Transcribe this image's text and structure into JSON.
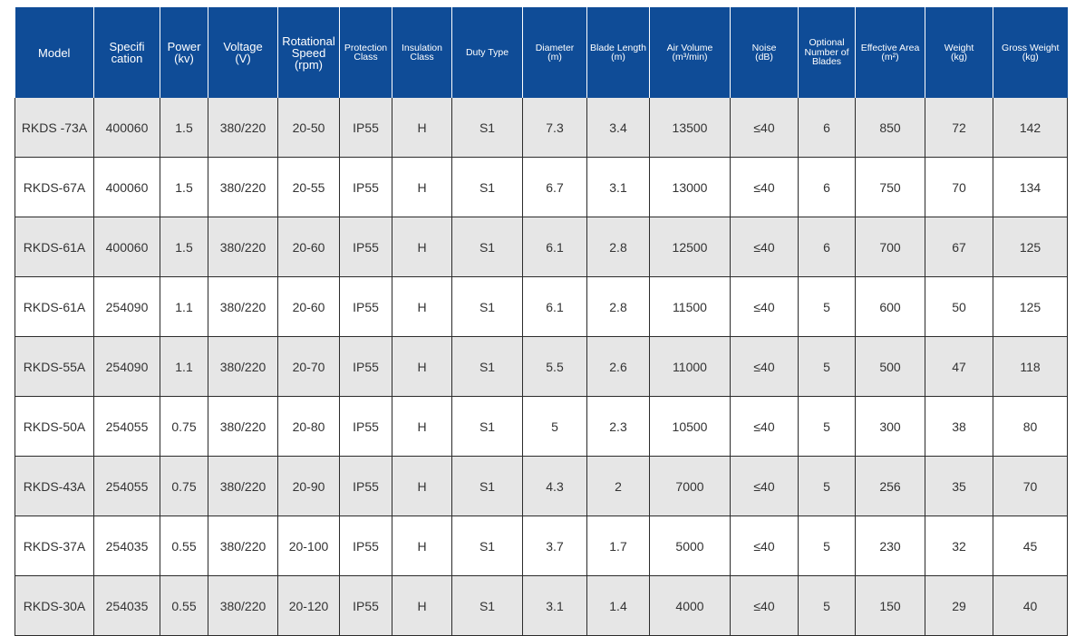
{
  "headers": [
    {
      "lines": [
        "Model"
      ],
      "size": "big"
    },
    {
      "lines": [
        "Specifi",
        "cation"
      ],
      "size": "big"
    },
    {
      "lines": [
        "Power",
        "(kv)"
      ],
      "size": "big"
    },
    {
      "lines": [
        "Voltage",
        "(V)"
      ],
      "size": "big"
    },
    {
      "lines": [
        "Rotational",
        "Speed",
        "(rpm)"
      ],
      "size": "big"
    },
    {
      "lines": [
        "Protection",
        "Class"
      ],
      "size": "sm"
    },
    {
      "lines": [
        "Insulation",
        "Class"
      ],
      "size": "sm"
    },
    {
      "lines": [
        "Duty Type"
      ],
      "size": "sm"
    },
    {
      "lines": [
        "Diameter",
        "(m)"
      ],
      "size": "sm"
    },
    {
      "lines": [
        "Blade Length",
        "(m)"
      ],
      "size": "sm"
    },
    {
      "lines": [
        "Air Volume",
        "(m³/min)"
      ],
      "size": "sm"
    },
    {
      "lines": [
        "Noise",
        "(dB)"
      ],
      "size": "sm"
    },
    {
      "lines": [
        "Optional",
        "Number of",
        "Blades"
      ],
      "size": "sm"
    },
    {
      "lines": [
        "Effective Area",
        "(m²)"
      ],
      "size": "sm"
    },
    {
      "lines": [
        "Weight",
        "(kg)"
      ],
      "size": "sm"
    },
    {
      "lines": [
        "Gross Weight",
        "(kg)"
      ],
      "size": "sm"
    }
  ],
  "rows": [
    [
      "RKDS -73A",
      "400060",
      "1.5",
      "380/220",
      "20-50",
      "IP55",
      "H",
      "S1",
      "7.3",
      "3.4",
      "13500",
      "≤40",
      "6",
      "850",
      "72",
      "142"
    ],
    [
      "RKDS-67A",
      "400060",
      "1.5",
      "380/220",
      "20-55",
      "IP55",
      "H",
      "S1",
      "6.7",
      "3.1",
      "13000",
      "≤40",
      "6",
      "750",
      "70",
      "134"
    ],
    [
      "RKDS-61A",
      "400060",
      "1.5",
      "380/220",
      "20-60",
      "IP55",
      "H",
      "S1",
      "6.1",
      "2.8",
      "12500",
      "≤40",
      "6",
      "700",
      "67",
      "125"
    ],
    [
      "RKDS-61A",
      "254090",
      "1.1",
      "380/220",
      "20-60",
      "IP55",
      "H",
      "S1",
      "6.1",
      "2.8",
      "11500",
      "≤40",
      "5",
      "600",
      "50",
      "125"
    ],
    [
      "RKDS-55A",
      "254090",
      "1.1",
      "380/220",
      "20-70",
      "IP55",
      "H",
      "S1",
      "5.5",
      "2.6",
      "11000",
      "≤40",
      "5",
      "500",
      "47",
      "118"
    ],
    [
      "RKDS-50A",
      "254055",
      "0.75",
      "380/220",
      "20-80",
      "IP55",
      "H",
      "S1",
      "5",
      "2.3",
      "10500",
      "≤40",
      "5",
      "300",
      "38",
      "80"
    ],
    [
      "RKDS-43A",
      "254055",
      "0.75",
      "380/220",
      "20-90",
      "IP55",
      "H",
      "S1",
      "4.3",
      "2",
      "7000",
      "≤40",
      "5",
      "256",
      "35",
      "70"
    ],
    [
      "RKDS-37A",
      "254035",
      "0.55",
      "380/220",
      "20-100",
      "IP55",
      "H",
      "S1",
      "3.7",
      "1.7",
      "5000",
      "≤40",
      "5",
      "230",
      "32",
      "45"
    ],
    [
      "RKDS-30A",
      "254035",
      "0.55",
      "380/220",
      "20-120",
      "IP55",
      "H",
      "S1",
      "3.1",
      "1.4",
      "4000",
      "≤40",
      "5",
      "150",
      "29",
      "40"
    ]
  ],
  "colors": {
    "header_bg": "#0f4c97",
    "row_alt_bg": "#e6e6e6"
  }
}
